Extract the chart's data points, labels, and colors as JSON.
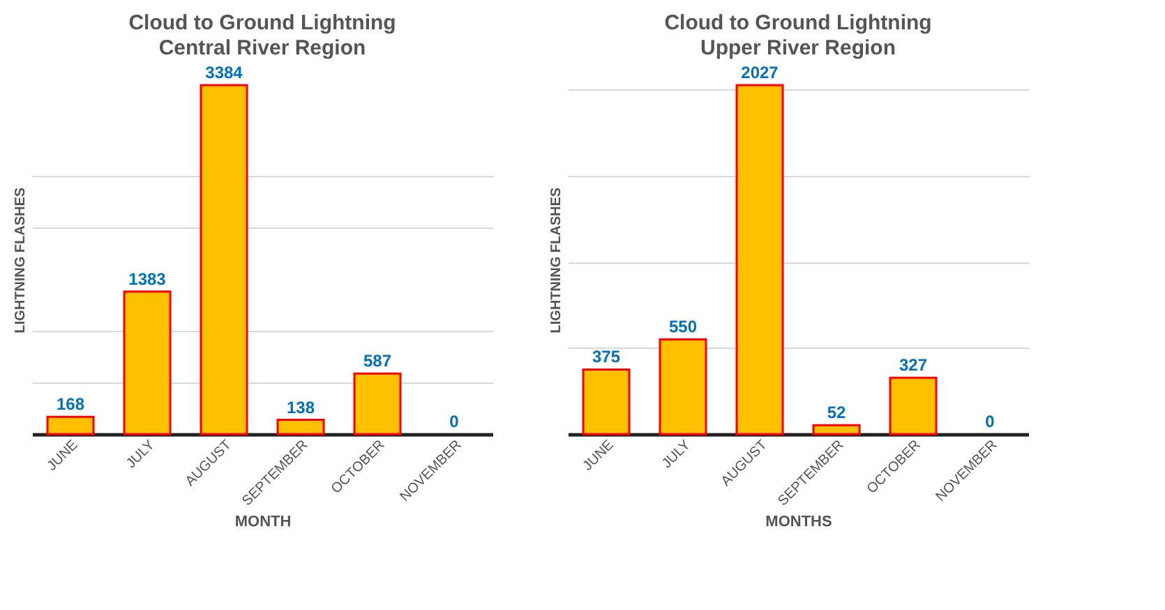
{
  "chart_data": [
    {
      "type": "bar",
      "title": "Cloud to Ground Lightning",
      "subtitle": "Central River Region",
      "xlabel": "MONTH",
      "ylabel": "LIGHTNING FLASHES",
      "categories": [
        "JUNE",
        "JULY",
        "AUGUST",
        "SEPTEMBER",
        "OCTOBER",
        "NOVEMBER"
      ],
      "series": [
        {
          "color": "#ffc000",
          "values": [
            168,
            1383,
            3384,
            138,
            587,
            0
          ]
        }
      ],
      "yticks": [
        {
          "value": 500,
          "label": null
        },
        {
          "value": 1000,
          "label": null
        },
        {
          "value": 2000,
          "label": null
        },
        {
          "value": 2500,
          "label": null
        }
      ],
      "grid": "y",
      "tick_labels": "x",
      "data_labels": true,
      "legend": false
    },
    {
      "type": "bar",
      "title": "Cloud to Ground Lightning",
      "subtitle": "Upper River Region",
      "xlabel": "MONTHS",
      "ylabel": "LIGHTNING FLASHES",
      "categories": [
        "JUNE",
        "JULY",
        "AUGUST",
        "SEPTEMBER",
        "OCTOBER",
        "NOVEMBER"
      ],
      "series": [
        {
          "color": "#ffc000",
          "values": [
            375,
            550,
            2027,
            52,
            327,
            0
          ]
        }
      ],
      "yticks": [
        {
          "value": 500,
          "label": null
        },
        {
          "value": 1000,
          "label": null
        },
        {
          "value": 1500,
          "label": null
        },
        {
          "value": 2000,
          "label": null
        }
      ],
      "grid": "y",
      "tick_labels": "x",
      "data_labels": true,
      "legend": false
    }
  ]
}
